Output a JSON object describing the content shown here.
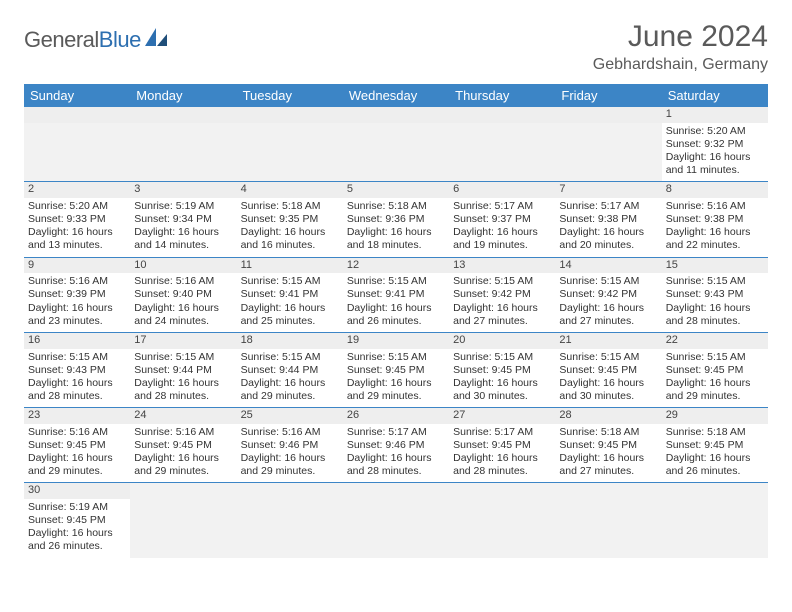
{
  "logo": {
    "text1": "General",
    "text2": "Blue"
  },
  "title": "June 2024",
  "location": "Gebhardshain, Germany",
  "colors": {
    "header_bg": "#3c85c6",
    "header_text": "#ffffff",
    "row_divider": "#3c85c6",
    "daynum_bg": "#eeeeee",
    "empty_bg": "#f2f2f2",
    "text": "#333333",
    "title_text": "#5a5a5a"
  },
  "typography": {
    "title_fontsize": 30,
    "location_fontsize": 16,
    "dayheader_fontsize": 13,
    "daynum_fontsize": 11,
    "body_fontsize": 10.5
  },
  "day_names": [
    "Sunday",
    "Monday",
    "Tuesday",
    "Wednesday",
    "Thursday",
    "Friday",
    "Saturday"
  ],
  "weeks": [
    [
      null,
      null,
      null,
      null,
      null,
      null,
      {
        "n": "1",
        "sr": "5:20 AM",
        "ss": "9:32 PM",
        "dl": "16 hours and 11 minutes."
      }
    ],
    [
      {
        "n": "2",
        "sr": "5:20 AM",
        "ss": "9:33 PM",
        "dl": "16 hours and 13 minutes."
      },
      {
        "n": "3",
        "sr": "5:19 AM",
        "ss": "9:34 PM",
        "dl": "16 hours and 14 minutes."
      },
      {
        "n": "4",
        "sr": "5:18 AM",
        "ss": "9:35 PM",
        "dl": "16 hours and 16 minutes."
      },
      {
        "n": "5",
        "sr": "5:18 AM",
        "ss": "9:36 PM",
        "dl": "16 hours and 18 minutes."
      },
      {
        "n": "6",
        "sr": "5:17 AM",
        "ss": "9:37 PM",
        "dl": "16 hours and 19 minutes."
      },
      {
        "n": "7",
        "sr": "5:17 AM",
        "ss": "9:38 PM",
        "dl": "16 hours and 20 minutes."
      },
      {
        "n": "8",
        "sr": "5:16 AM",
        "ss": "9:38 PM",
        "dl": "16 hours and 22 minutes."
      }
    ],
    [
      {
        "n": "9",
        "sr": "5:16 AM",
        "ss": "9:39 PM",
        "dl": "16 hours and 23 minutes."
      },
      {
        "n": "10",
        "sr": "5:16 AM",
        "ss": "9:40 PM",
        "dl": "16 hours and 24 minutes."
      },
      {
        "n": "11",
        "sr": "5:15 AM",
        "ss": "9:41 PM",
        "dl": "16 hours and 25 minutes."
      },
      {
        "n": "12",
        "sr": "5:15 AM",
        "ss": "9:41 PM",
        "dl": "16 hours and 26 minutes."
      },
      {
        "n": "13",
        "sr": "5:15 AM",
        "ss": "9:42 PM",
        "dl": "16 hours and 27 minutes."
      },
      {
        "n": "14",
        "sr": "5:15 AM",
        "ss": "9:42 PM",
        "dl": "16 hours and 27 minutes."
      },
      {
        "n": "15",
        "sr": "5:15 AM",
        "ss": "9:43 PM",
        "dl": "16 hours and 28 minutes."
      }
    ],
    [
      {
        "n": "16",
        "sr": "5:15 AM",
        "ss": "9:43 PM",
        "dl": "16 hours and 28 minutes."
      },
      {
        "n": "17",
        "sr": "5:15 AM",
        "ss": "9:44 PM",
        "dl": "16 hours and 28 minutes."
      },
      {
        "n": "18",
        "sr": "5:15 AM",
        "ss": "9:44 PM",
        "dl": "16 hours and 29 minutes."
      },
      {
        "n": "19",
        "sr": "5:15 AM",
        "ss": "9:45 PM",
        "dl": "16 hours and 29 minutes."
      },
      {
        "n": "20",
        "sr": "5:15 AM",
        "ss": "9:45 PM",
        "dl": "16 hours and 30 minutes."
      },
      {
        "n": "21",
        "sr": "5:15 AM",
        "ss": "9:45 PM",
        "dl": "16 hours and 30 minutes."
      },
      {
        "n": "22",
        "sr": "5:15 AM",
        "ss": "9:45 PM",
        "dl": "16 hours and 29 minutes."
      }
    ],
    [
      {
        "n": "23",
        "sr": "5:16 AM",
        "ss": "9:45 PM",
        "dl": "16 hours and 29 minutes."
      },
      {
        "n": "24",
        "sr": "5:16 AM",
        "ss": "9:45 PM",
        "dl": "16 hours and 29 minutes."
      },
      {
        "n": "25",
        "sr": "5:16 AM",
        "ss": "9:46 PM",
        "dl": "16 hours and 29 minutes."
      },
      {
        "n": "26",
        "sr": "5:17 AM",
        "ss": "9:46 PM",
        "dl": "16 hours and 28 minutes."
      },
      {
        "n": "27",
        "sr": "5:17 AM",
        "ss": "9:45 PM",
        "dl": "16 hours and 28 minutes."
      },
      {
        "n": "28",
        "sr": "5:18 AM",
        "ss": "9:45 PM",
        "dl": "16 hours and 27 minutes."
      },
      {
        "n": "29",
        "sr": "5:18 AM",
        "ss": "9:45 PM",
        "dl": "16 hours and 26 minutes."
      }
    ],
    [
      {
        "n": "30",
        "sr": "5:19 AM",
        "ss": "9:45 PM",
        "dl": "16 hours and 26 minutes."
      },
      null,
      null,
      null,
      null,
      null,
      null
    ]
  ],
  "labels": {
    "sunrise": "Sunrise: ",
    "sunset": "Sunset: ",
    "daylight": "Daylight: "
  }
}
